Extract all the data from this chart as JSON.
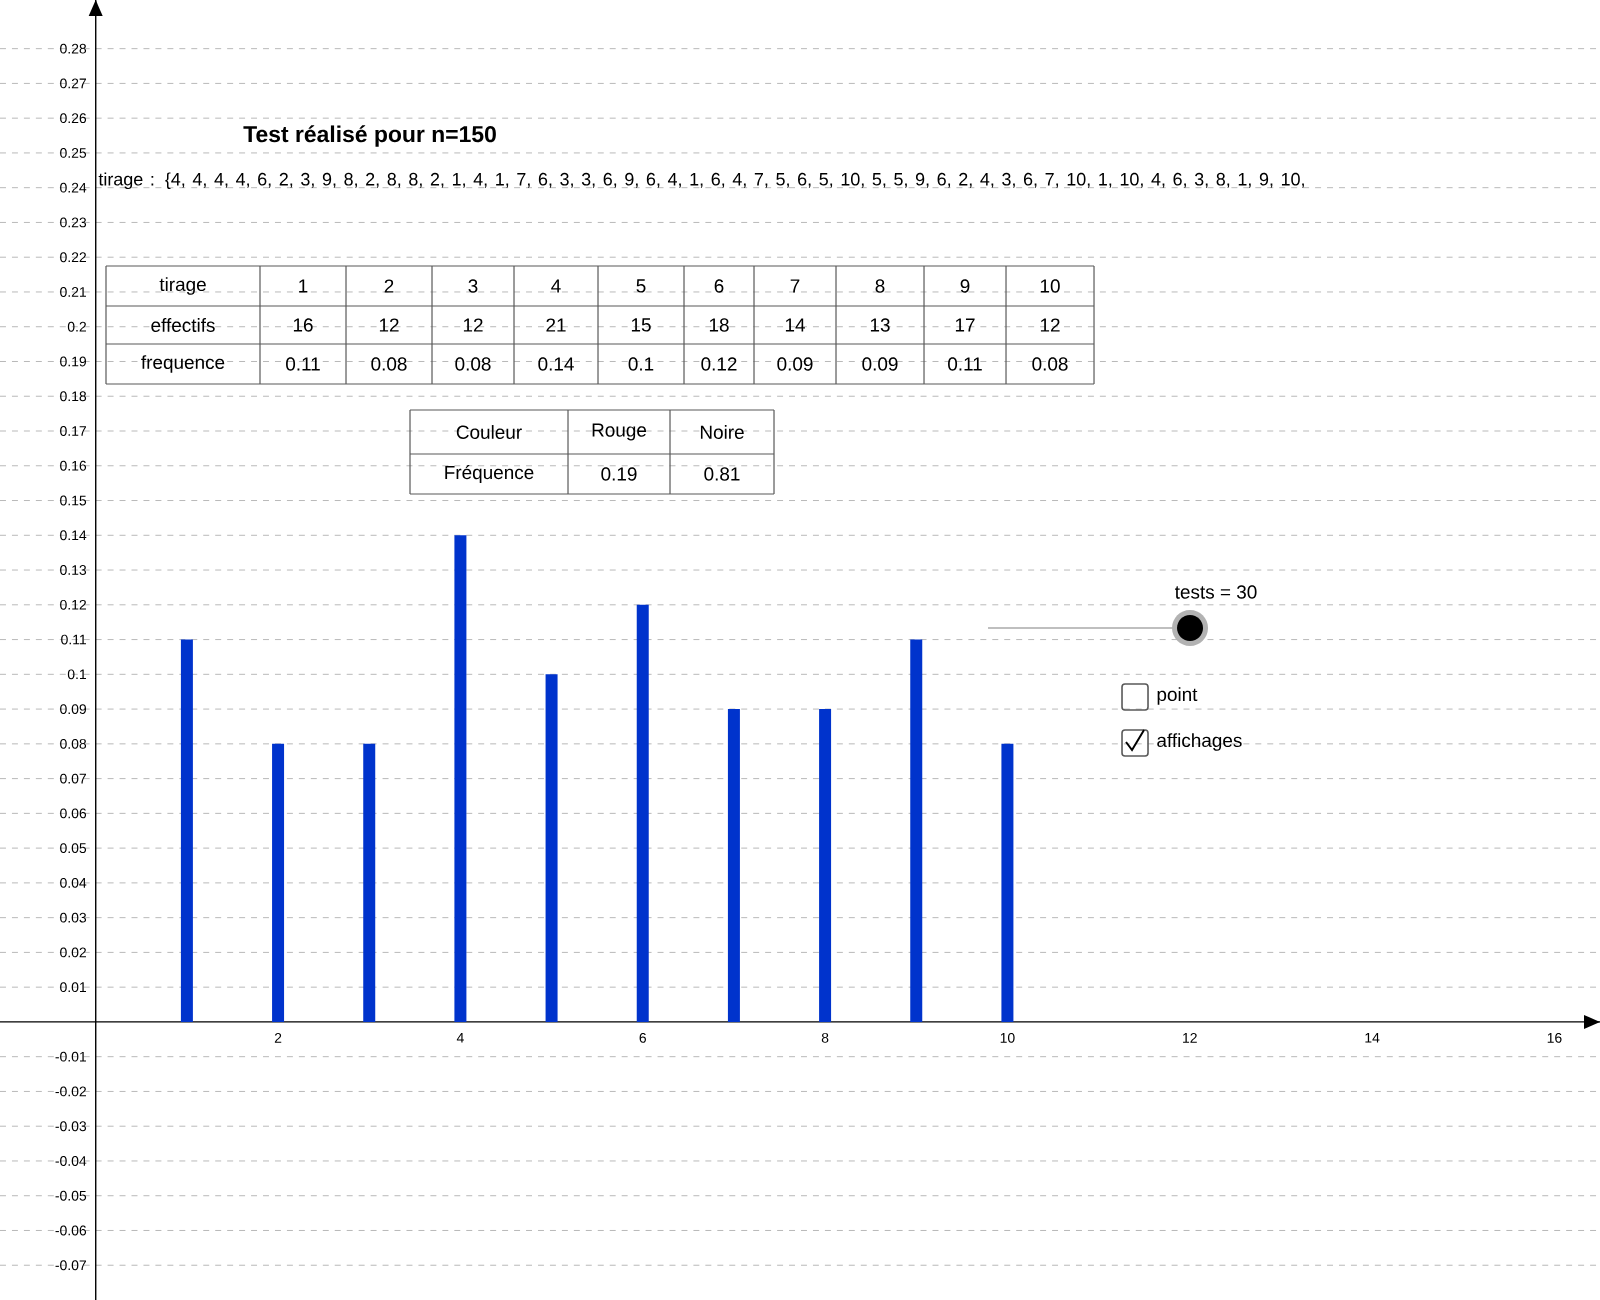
{
  "chart_data": {
    "type": "bar",
    "title": "Test réalisé pour n=150",
    "x": [
      1,
      2,
      3,
      4,
      5,
      6,
      7,
      8,
      9,
      10
    ],
    "values": [
      0.11,
      0.08,
      0.08,
      0.14,
      0.1,
      0.12,
      0.09,
      0.09,
      0.11,
      0.08
    ],
    "color": "#0033cc",
    "xlim": [
      -1.05,
      16.5
    ],
    "ylim": [
      -0.08,
      0.294
    ],
    "xticks": [
      2,
      4,
      6,
      8,
      10,
      12,
      14,
      16
    ],
    "yticks": [
      -0.07,
      -0.06,
      -0.05,
      -0.04,
      -0.03,
      -0.02,
      -0.01,
      0.01,
      0.02,
      0.03,
      0.04,
      0.05,
      0.06,
      0.07,
      0.08,
      0.09,
      0.1,
      0.11,
      0.12,
      0.13,
      0.14,
      0.15,
      0.16,
      0.17,
      0.18,
      0.19,
      0.2,
      0.21,
      0.22,
      0.23,
      0.24,
      0.25,
      0.26,
      0.27,
      0.28
    ],
    "grid": "y",
    "annotations": [
      "tirage : {4, 4, 4, 4, 6, 2, 3, 9, 8, 2, 8, 8, 2, 1, 4, 1, 7, 6, 3, 3, 6, 9, 6, 4, 1, 6, 4, 7, 5, 6, 5, 10, 5, 5, 9, 6, 2, 4, 3, 6, 7, 10, 1, 10, 4, 6, 3, 8, 1, 9, 10,",
      "tirage",
      "effectifs",
      "frequence",
      "16",
      "12",
      "12",
      "21",
      "15",
      "18",
      "14",
      "13",
      "17",
      "12",
      "Couleur",
      "Rouge",
      "Noire",
      "Fréquence",
      "0.19",
      "0.81",
      "tests = 30",
      "point",
      "affichages",
      "1",
      "2",
      "3",
      "4",
      "5",
      "6",
      "7",
      "8",
      "9",
      "10",
      "0.11",
      "0.08",
      "0.08",
      "0.14",
      "0.1",
      "0.12",
      "0.09",
      "0.09",
      "0.11",
      "0.08"
    ]
  }
}
